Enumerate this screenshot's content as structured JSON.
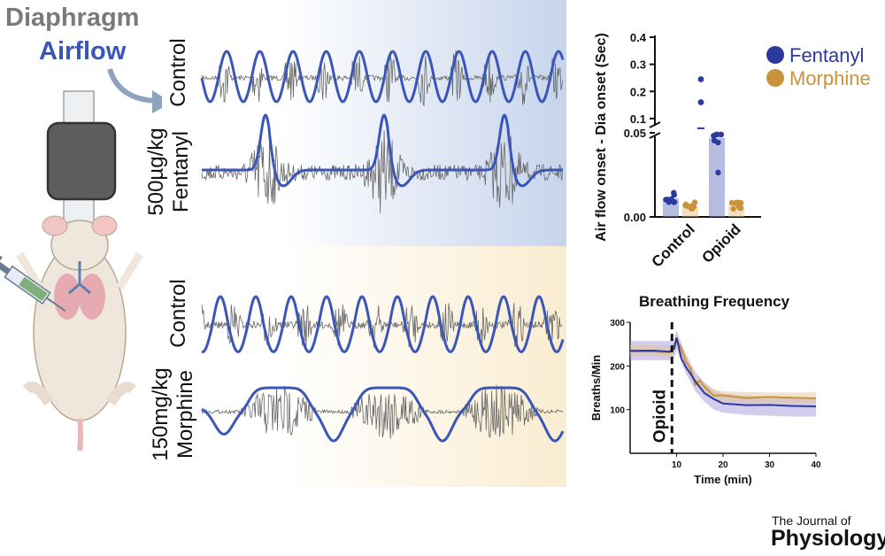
{
  "legend": {
    "diaphragm": "Diaphragm",
    "airflow": "Airflow"
  },
  "traces": {
    "fentanyl_control": "Control",
    "fentanyl_drug_line1": "500µg/kg",
    "fentanyl_drug_line2": "Fentanyl",
    "morphine_control": "Control",
    "morphine_drug_line1": "150mg/kg",
    "morphine_drug_line2": "Morphine"
  },
  "colors": {
    "fentanyl": "#2b3a9c",
    "morphine": "#c9933d",
    "emg": "#666666",
    "airflow": "#3a56b8"
  },
  "journal": {
    "line1": "The Journal of",
    "line2": "Physiology"
  },
  "chart_data": [
    {
      "type": "bar",
      "title": "",
      "ylabel": "Air flow onset - Dia onset (Sec)",
      "categories": [
        "Control",
        "Opioid"
      ],
      "series": [
        {
          "name": "Fentanyl",
          "values": [
            0.011,
            0.047
          ]
        },
        {
          "name": "Morphine",
          "values": [
            0.006,
            0.007
          ]
        }
      ],
      "y_ticks_lower": [
        "0.00",
        "0.05"
      ],
      "y_ticks_upper": [
        "0.1",
        "0.2",
        "0.3",
        "0.4"
      ],
      "axis_break": [
        0.05,
        0.08
      ],
      "ylim": [
        0,
        0.4
      ]
    },
    {
      "type": "line",
      "title": "Breathing Frequency",
      "xlabel": "Time (min)",
      "ylabel": "Breaths/Min",
      "x_ticks": [
        "10",
        "20",
        "30",
        "40"
      ],
      "y_ticks": [
        "100",
        "200",
        "300"
      ],
      "xlim": [
        0,
        40
      ],
      "ylim": [
        0,
        300
      ],
      "annotation": "Opioid",
      "opioid_time": 9,
      "series": [
        {
          "name": "Fentanyl",
          "x": [
            0,
            5,
            8.5,
            9.5,
            10,
            11,
            12,
            13,
            14,
            16,
            18,
            20,
            25,
            30,
            35,
            40
          ],
          "values": [
            235,
            235,
            235,
            240,
            260,
            230,
            205,
            185,
            165,
            140,
            122,
            115,
            110,
            108,
            106,
            106
          ]
        },
        {
          "name": "Morphine",
          "x": [
            0,
            5,
            8.5,
            9.5,
            10,
            11,
            12,
            13,
            14,
            15,
            16,
            18,
            20,
            25,
            30,
            35,
            40
          ],
          "values": [
            235,
            236,
            232,
            240,
            265,
            235,
            215,
            190,
            165,
            160,
            150,
            135,
            130,
            128,
            127,
            127,
            128
          ]
        }
      ]
    }
  ]
}
